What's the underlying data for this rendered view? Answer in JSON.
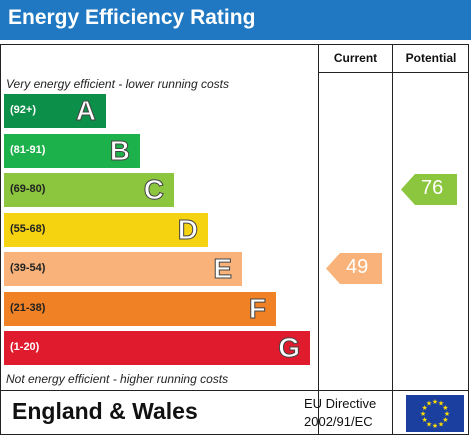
{
  "title": "Energy Efficiency Rating",
  "columns": {
    "current": "Current",
    "potential": "Potential"
  },
  "top_note": "Very energy efficient - lower running costs",
  "bottom_note": "Not energy efficient - higher running costs",
  "chart_data": {
    "type": "bar",
    "title": "Energy Efficiency Rating",
    "categories": [
      "A",
      "B",
      "C",
      "D",
      "E",
      "F",
      "G"
    ],
    "bands": [
      {
        "letter": "A",
        "range": "(92+)",
        "color": "#0c8f48"
      },
      {
        "letter": "B",
        "range": "(81-91)",
        "color": "#1db14b"
      },
      {
        "letter": "C",
        "range": "(69-80)",
        "color": "#8cc63f"
      },
      {
        "letter": "D",
        "range": "(55-68)",
        "color": "#f5d311"
      },
      {
        "letter": "E",
        "range": "(39-54)",
        "color": "#f9b37a"
      },
      {
        "letter": "F",
        "range": "(21-38)",
        "color": "#f08124"
      },
      {
        "letter": "G",
        "range": "(1-20)",
        "color": "#e01b2e"
      }
    ],
    "current": {
      "value": 49,
      "band": "E",
      "color": "#f9b37a"
    },
    "potential": {
      "value": 76,
      "band": "C",
      "color": "#8cc63f"
    }
  },
  "footer": {
    "country": "England & Wales",
    "directive_line1": "EU Directive",
    "directive_line2": "2002/91/EC"
  }
}
